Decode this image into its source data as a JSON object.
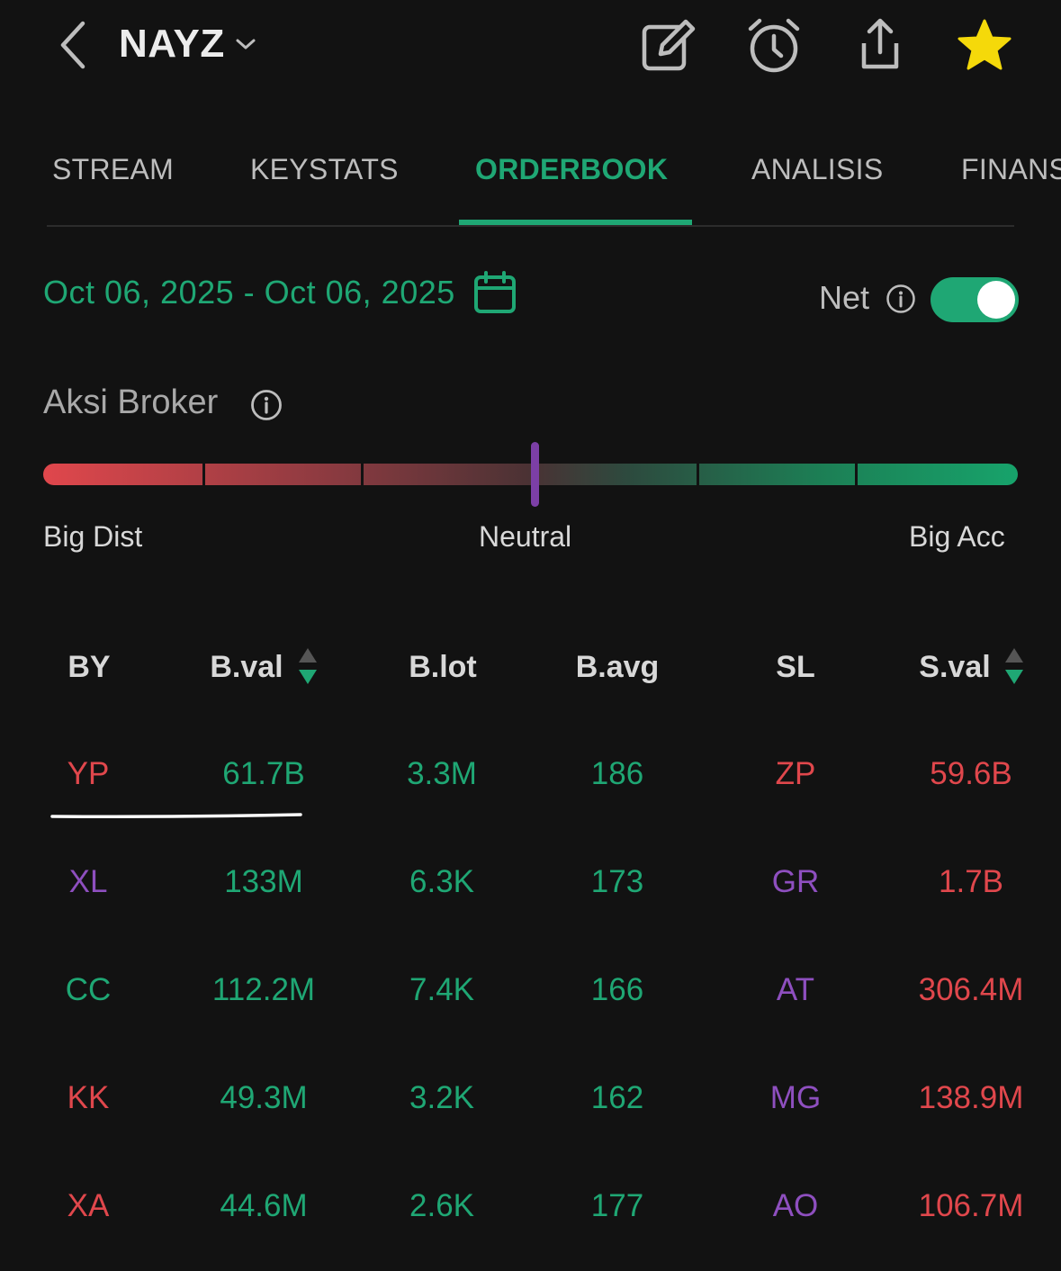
{
  "header": {
    "ticker": "NAYZ",
    "icons": [
      "back-chevron-icon",
      "dropdown-chevron-icon",
      "edit-icon",
      "alarm-clock-icon",
      "share-icon",
      "star-icon"
    ]
  },
  "tabs": [
    {
      "label": "STREAM"
    },
    {
      "label": "KEYSTATS"
    },
    {
      "label": "ORDERBOOK",
      "active": true
    },
    {
      "label": "ANALISIS"
    },
    {
      "label": "FINANS"
    }
  ],
  "date_range": "Oct 06, 2025 - Oct 06, 2025",
  "net": {
    "label": "Net",
    "enabled": true
  },
  "aksi_broker": {
    "title": "Aksi Broker",
    "labels": {
      "left": "Big Dist",
      "center": "Neutral",
      "right": "Big Acc"
    },
    "indicator": "Neutral"
  },
  "table": {
    "headers": [
      "BY",
      "B.val",
      "B.lot",
      "B.avg",
      "SL",
      "S.val"
    ],
    "rows": [
      {
        "by": "YP",
        "by_color": "red",
        "bval": "61.7B",
        "blot": "3.3M",
        "bavg": "186",
        "sl": "ZP",
        "sl_color": "red",
        "sval": "59.6B"
      },
      {
        "by": "XL",
        "by_color": "purple",
        "bval": "133M",
        "blot": "6.3K",
        "bavg": "173",
        "sl": "GR",
        "sl_color": "purple",
        "sval": "1.7B"
      },
      {
        "by": "CC",
        "by_color": "green",
        "bval": "112.2M",
        "blot": "7.4K",
        "bavg": "166",
        "sl": "AT",
        "sl_color": "purple",
        "sval": "306.4M"
      },
      {
        "by": "KK",
        "by_color": "red",
        "bval": "49.3M",
        "blot": "3.2K",
        "bavg": "162",
        "sl": "MG",
        "sl_color": "purple",
        "sval": "138.9M"
      },
      {
        "by": "XA",
        "by_color": "red",
        "bval": "44.6M",
        "blot": "2.6K",
        "bavg": "177",
        "sl": "AO",
        "sl_color": "purple",
        "sval": "106.7M"
      }
    ]
  },
  "colors": {
    "accent_green": "#1fa774",
    "red": "#e0474c",
    "purple": "#8e4fbf",
    "star": "#f5d90a"
  }
}
